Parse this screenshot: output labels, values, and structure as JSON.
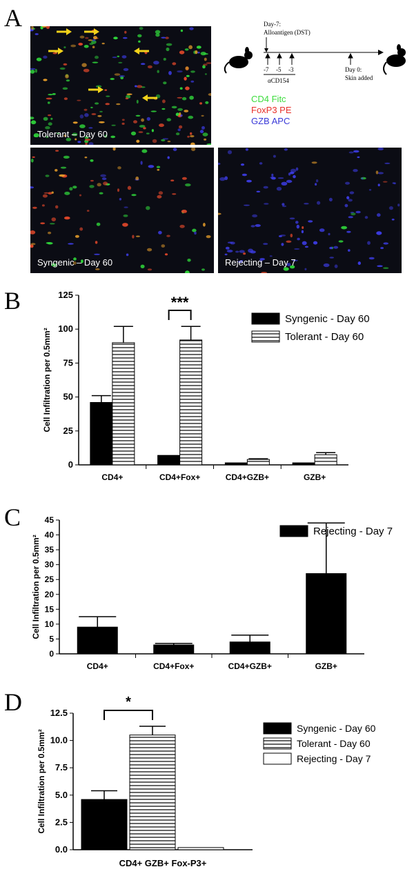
{
  "panels": {
    "a": "A",
    "b": "B",
    "c": "C",
    "d": "D"
  },
  "micrographs": {
    "tolerant": "Tolerant – Day 60",
    "syngenic": "Syngenic – Day 60",
    "rejecting": "Rejecting – Day 7"
  },
  "timeline": {
    "day_minus7": "Day-7:",
    "alloantigen": "Alloantigen (DST)",
    "t7": "-7",
    "t5": "-5",
    "t3": "-3",
    "antibody": "αCD154",
    "day0": "Day 0:",
    "skin": "Skin added"
  },
  "stains": [
    {
      "label": "CD4 Fitc",
      "color": "#3ddc3d"
    },
    {
      "label": "FoxP3 PE",
      "color": "#e8302a"
    },
    {
      "label": "GZB APC",
      "color": "#3a3ad8"
    }
  ],
  "colors": {
    "micro_bg": "#0b0c14",
    "arrow": "#f2d21a",
    "bar_solid": "#000000"
  },
  "chart_data": [
    {
      "type": "bar",
      "ylabel": "Cell Infiltration per 0.5mm²",
      "ylim": [
        0,
        125
      ],
      "yticks": [
        0,
        25,
        50,
        75,
        100,
        125
      ],
      "categories": [
        "CD4+",
        "CD4+Fox+",
        "CD4+GZB+",
        "GZB+"
      ],
      "series": [
        {
          "name": "Syngenic - Day 60",
          "pattern": "solid",
          "values": [
            46,
            7,
            1.5,
            1.5
          ],
          "errors": [
            5,
            0,
            0,
            0
          ]
        },
        {
          "name": "Tolerant - Day 60",
          "pattern": "hstripe",
          "values": [
            90,
            92,
            4,
            7.5
          ],
          "errors": [
            12,
            10,
            0.5,
            1.5
          ]
        }
      ],
      "annotations": [
        {
          "text": "***",
          "between_category": 1
        }
      ],
      "legend": "top-right"
    },
    {
      "type": "bar",
      "ylabel": "Cell Infiltration per 0.5mm²",
      "ylim": [
        0,
        45
      ],
      "yticks": [
        0,
        5,
        10,
        15,
        20,
        25,
        30,
        35,
        40,
        45
      ],
      "categories": [
        "CD4+",
        "CD4+Fox+",
        "CD4+GZB+",
        "GZB+"
      ],
      "series": [
        {
          "name": "Rejecting - Day 7",
          "pattern": "solid",
          "values": [
            9,
            3,
            4,
            27
          ],
          "errors": [
            3.5,
            0.5,
            2.3,
            17
          ]
        }
      ],
      "legend": "top-right"
    },
    {
      "type": "bar",
      "ylabel": "Cell Infiltration per 0.5mm²",
      "ylim": [
        0,
        12.5
      ],
      "yticks": [
        "0.0",
        "2.5",
        "5.0",
        "7.5",
        "10.0",
        "12.5"
      ],
      "xlabel": "CD4+ GZB+ Fox-P3+",
      "series": [
        {
          "name": "Syngenic - Day 60",
          "pattern": "solid",
          "value": 4.6,
          "error": 0.8
        },
        {
          "name": "Tolerant - Day 60",
          "pattern": "hstripe",
          "value": 10.5,
          "error": 0.8
        },
        {
          "name": "Rejecting - Day 7",
          "pattern": "open",
          "value": 0.2,
          "error": 0
        }
      ],
      "annotations": [
        {
          "text": "*",
          "between_series": [
            0,
            1
          ]
        }
      ],
      "legend": "top-right"
    }
  ]
}
